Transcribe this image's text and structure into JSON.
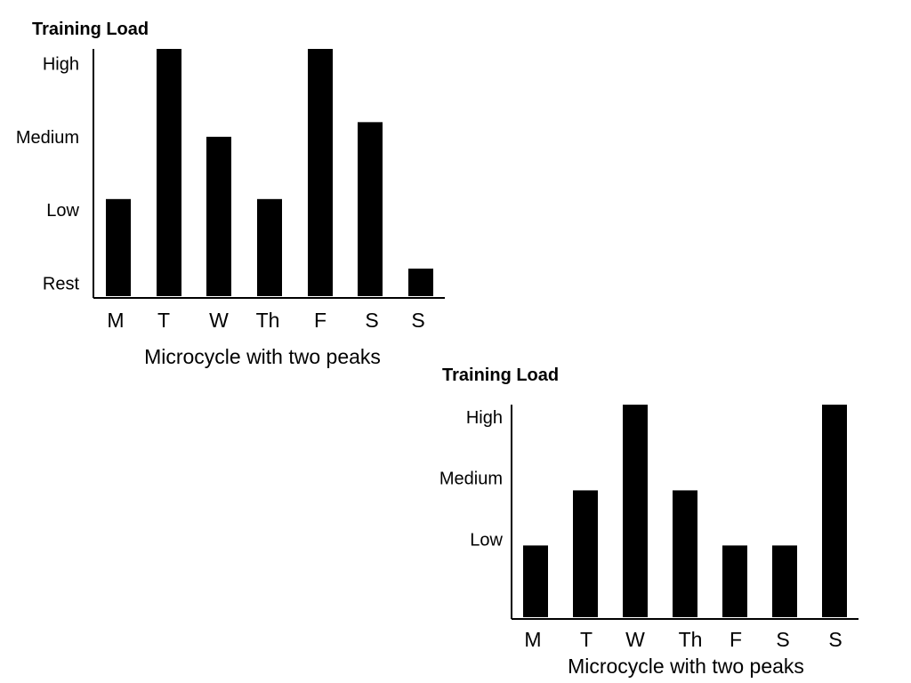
{
  "chart_data": [
    {
      "type": "bar",
      "ylabel": "Training Load",
      "xlabel": "Microcycle with two peaks",
      "categories": [
        "M",
        "T",
        "W",
        "Th",
        "F",
        "S",
        "S"
      ],
      "y_levels": [
        "Rest",
        "Low",
        "Medium",
        "High"
      ],
      "y_level_values": [
        0,
        1,
        2,
        3
      ],
      "values": [
        1.15,
        3.2,
        2.0,
        1.15,
        3.2,
        2.2,
        0.2
      ],
      "ylim": [
        -0.2,
        3.2
      ],
      "grid": false,
      "bar_color": "#000000"
    },
    {
      "type": "bar",
      "ylabel": "Training Load",
      "xlabel": "Microcycle with two peaks",
      "categories": [
        "M",
        "T",
        "W",
        "Th",
        "F",
        "S",
        "S"
      ],
      "y_levels": [
        "Low",
        "Medium",
        "High"
      ],
      "y_level_values": [
        1,
        2,
        3
      ],
      "values": [
        0.9,
        1.8,
        3.2,
        1.8,
        0.9,
        0.9,
        3.2
      ],
      "ylim": [
        -0.3,
        3.2
      ],
      "grid": false,
      "bar_color": "#000000"
    }
  ]
}
